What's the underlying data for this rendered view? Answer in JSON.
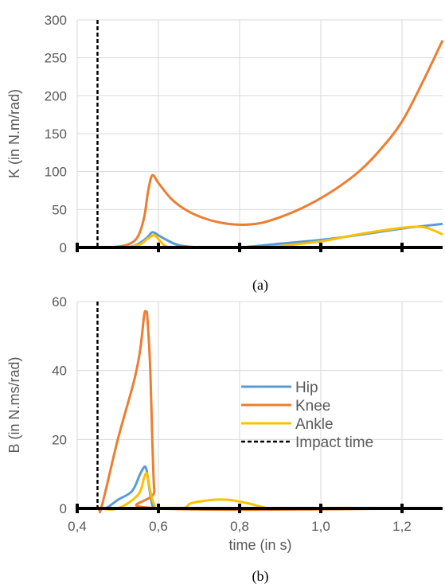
{
  "chart_data": [
    {
      "type": "line",
      "caption": "(a)",
      "ylabel": "K (in N.m/rad)",
      "xlim": [
        0.4,
        1.3
      ],
      "ylim": [
        0,
        300
      ],
      "yticks": [
        0,
        50,
        100,
        150,
        200,
        250,
        300
      ],
      "xtick_marks": [
        0.4,
        0.6,
        0.8,
        1.0,
        1.2
      ],
      "grid": true,
      "impact_time": 0.45,
      "series": [
        {
          "name": "Hip",
          "color": "#5B9BD5",
          "x": [
            0.4,
            0.45,
            0.5,
            0.54,
            0.57,
            0.585,
            0.6,
            0.62,
            0.65,
            0.7,
            0.75,
            0.8,
            0.9,
            1.0,
            1.1,
            1.2,
            1.3
          ],
          "y": [
            0,
            0,
            0,
            2,
            12,
            20,
            16,
            10,
            3,
            0,
            0,
            0,
            5,
            10,
            17,
            25,
            31
          ]
        },
        {
          "name": "Knee",
          "color": "#ED7D31",
          "x": [
            0.4,
            0.45,
            0.5,
            0.53,
            0.55,
            0.565,
            0.575,
            0.585,
            0.6,
            0.63,
            0.66,
            0.7,
            0.75,
            0.8,
            0.85,
            0.9,
            0.95,
            1.0,
            1.05,
            1.1,
            1.15,
            1.2,
            1.25,
            1.3
          ],
          "y": [
            0,
            0,
            1,
            5,
            15,
            40,
            75,
            95,
            85,
            65,
            52,
            41,
            33,
            30,
            32,
            40,
            51,
            65,
            82,
            103,
            131,
            166,
            217,
            273
          ]
        },
        {
          "name": "Ankle",
          "color": "#FFC000",
          "x": [
            0.4,
            0.45,
            0.5,
            0.55,
            0.575,
            0.59,
            0.605,
            0.62,
            0.65,
            0.8,
            0.85,
            0.9,
            1.0,
            1.1,
            1.2,
            1.25,
            1.28,
            1.3
          ],
          "y": [
            0,
            0,
            0,
            3,
            12,
            16,
            8,
            1,
            0,
            0,
            0,
            2,
            8,
            18,
            26,
            27,
            22,
            17
          ]
        },
        {
          "name": "Impact time",
          "color": "#000000",
          "x": [
            0.45,
            0.45
          ],
          "y": [
            0,
            300
          ]
        }
      ]
    },
    {
      "type": "line",
      "caption": "(b)",
      "xlabel": "time (in s)",
      "ylabel": "B (in N.ms/rad)",
      "xlim": [
        0.4,
        1.3
      ],
      "ylim": [
        0,
        60
      ],
      "yticks": [
        0,
        20,
        40,
        60
      ],
      "xticks": [
        0.4,
        0.6,
        0.8,
        1.0,
        1.2
      ],
      "xtick_labels": [
        "0,4",
        "0,6",
        "0,8",
        "1,0",
        "1,2"
      ],
      "grid": true,
      "legend": "center-right",
      "impact_time": 0.45,
      "series": [
        {
          "name": "Hip",
          "color": "#5B9BD5",
          "x": [
            0.4,
            0.45,
            0.47,
            0.5,
            0.535,
            0.555,
            0.565,
            0.57,
            0.575,
            0.58,
            0.585,
            0.59,
            0.6,
            1.3
          ],
          "y": [
            0,
            0,
            0,
            2.5,
            5,
            10,
            12,
            11.5,
            8,
            4,
            1,
            0,
            0,
            0
          ]
        },
        {
          "name": "Knee",
          "color": "#ED7D31",
          "x": [
            0.4,
            0.45,
            0.46,
            0.5,
            0.54,
            0.555,
            0.565,
            0.57,
            0.573,
            0.58,
            0.585,
            0.59,
            0.6,
            1.3
          ],
          "y": [
            0,
            0,
            0.5,
            20,
            37,
            46,
            56,
            57,
            55,
            40,
            20,
            5,
            0,
            0
          ]
        },
        {
          "name": "Ankle",
          "color": "#FFC000",
          "x": [
            0.4,
            0.45,
            0.5,
            0.55,
            0.565,
            0.572,
            0.58,
            0.59,
            0.6,
            0.66,
            0.68,
            0.72,
            0.75,
            0.78,
            0.82,
            0.86,
            0.88,
            1.3
          ],
          "y": [
            0,
            0,
            0,
            4,
            9,
            10,
            5,
            1,
            0,
            0,
            1.5,
            2.3,
            2.6,
            2.4,
            1.5,
            0.3,
            0,
            0
          ]
        },
        {
          "name": "Impact time",
          "color": "#000000",
          "x": [
            0.45,
            0.45
          ],
          "y": [
            0,
            60
          ]
        }
      ]
    }
  ]
}
